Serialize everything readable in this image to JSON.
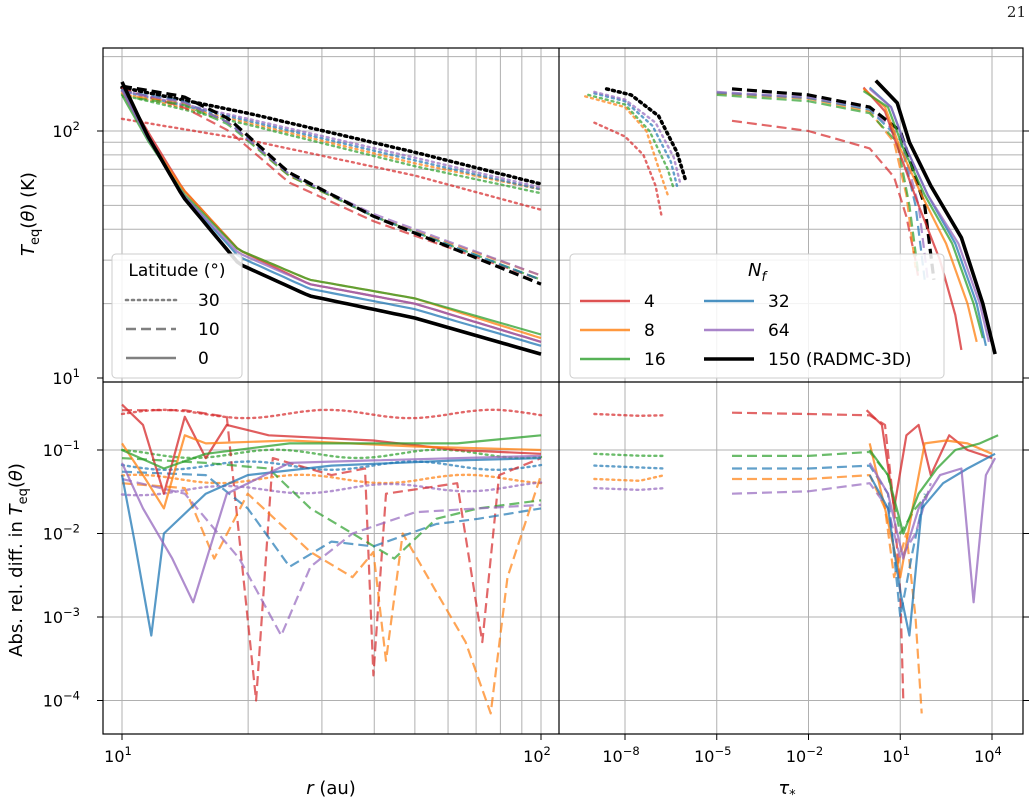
{
  "page_number": "21",
  "colors": {
    "Nf_4": "#d62728",
    "Nf_8": "#ff7f0e",
    "Nf_16": "#2ca02c",
    "Nf_32": "#1f77b4",
    "Nf_64": "#9467bd",
    "Nf_150": "#000000"
  },
  "legend_latitude": {
    "title": "Latitude (°)",
    "entries": [
      {
        "label": "30",
        "style": "dotted"
      },
      {
        "label": "10",
        "style": "dashed"
      },
      {
        "label": "0",
        "style": "solid"
      }
    ]
  },
  "legend_nf": {
    "title": "N_f",
    "entries": [
      {
        "label": "4",
        "key": "Nf_4"
      },
      {
        "label": "8",
        "key": "Nf_8"
      },
      {
        "label": "16",
        "key": "Nf_16"
      },
      {
        "label": "32",
        "key": "Nf_32"
      },
      {
        "label": "64",
        "key": "Nf_64"
      },
      {
        "label": "150 (RADMC-3D)",
        "key": "Nf_150"
      }
    ]
  },
  "chart_data": [
    {
      "type": "line",
      "panel": "top-left",
      "xscale": "log",
      "yscale": "log",
      "xlim": [
        10,
        100
      ],
      "ylim": [
        10,
        200
      ],
      "ylabel": "T_eq(θ) (K)",
      "yticks": [
        "10^2",
        "10^1"
      ],
      "series": [
        {
          "name": "150 (RADMC-3D)",
          "latitude": 30,
          "x": [
            10,
            20,
            50,
            100
          ],
          "y": [
            150,
            118,
            82,
            61
          ]
        },
        {
          "name": "4",
          "latitude": 30,
          "x": [
            10,
            20,
            50,
            100
          ],
          "y": [
            112,
            92,
            66,
            48
          ]
        },
        {
          "name": "16",
          "latitude": 30,
          "x": [
            10,
            20,
            50,
            100
          ],
          "y": [
            145,
            110,
            75,
            57
          ]
        },
        {
          "name": "150 (RADMC-3D)",
          "latitude": 10,
          "x": [
            10,
            15,
            20,
            30,
            50,
            100
          ],
          "y": [
            150,
            135,
            110,
            68,
            45,
            25
          ]
        },
        {
          "name": "4",
          "latitude": 10,
          "x": [
            10,
            15,
            20,
            30,
            50,
            100
          ],
          "y": [
            148,
            120,
            95,
            63,
            43,
            25
          ]
        },
        {
          "name": "150 (RADMC-3D)",
          "latitude": 0,
          "x": [
            10,
            12,
            15,
            20,
            30,
            50,
            100
          ],
          "y": [
            155,
            95,
            55,
            30,
            22,
            18,
            12.5
          ]
        },
        {
          "name": "16",
          "latitude": 0,
          "x": [
            10,
            12,
            15,
            20,
            30,
            50,
            100
          ],
          "y": [
            145,
            90,
            55,
            32,
            24,
            20,
            14.5
          ]
        }
      ]
    },
    {
      "type": "line",
      "panel": "top-right",
      "xscale": "log",
      "yscale": "log",
      "xlim": [
        1e-10,
        100000.0
      ],
      "ylim": [
        10,
        200
      ],
      "series": [
        {
          "name": "150 (RADMC-3D)",
          "latitude": 30,
          "x": [
            3e-09,
            1e-07,
            5e-07
          ],
          "y": [
            145,
            100,
            60
          ]
        },
        {
          "name": "4",
          "latitude": 30,
          "x": [
            1e-09,
            2e-08,
            1e-07
          ],
          "y": [
            108,
            80,
            45
          ]
        },
        {
          "name": "150 (RADMC-3D)",
          "latitude": 10,
          "x": [
            1e-05,
            0.01,
            1,
            30,
            100
          ],
          "y": [
            145,
            138,
            110,
            45,
            25
          ]
        },
        {
          "name": "4",
          "latitude": 10,
          "x": [
            1e-05,
            0.01,
            1,
            10,
            50
          ],
          "y": [
            112,
            100,
            75,
            40,
            25
          ]
        },
        {
          "name": "150 (RADMC-3D)",
          "latitude": 0,
          "x": [
            1,
            10,
            100,
            1000,
            10000
          ],
          "y": [
            155,
            100,
            55,
            35,
            12.5
          ]
        },
        {
          "name": "4",
          "latitude": 0,
          "x": [
            1,
            10,
            100,
            1000
          ],
          "y": [
            150,
            90,
            40,
            13
          ]
        }
      ]
    },
    {
      "type": "line",
      "panel": "bottom-left",
      "xscale": "log",
      "yscale": "log",
      "xlim": [
        10,
        100
      ],
      "ylim": [
        5e-05,
        0.6
      ],
      "xlabel": "r (au)",
      "ylabel": "Abs. rel. diff. in T_eq(θ)",
      "xticks": [
        "10^1",
        "10^2"
      ],
      "yticks": [
        "10^-1",
        "10^-2",
        "10^-3",
        "10^-4"
      ],
      "series": [
        {
          "name": "4",
          "latitude": 30,
          "x": [
            10,
            100
          ],
          "y": [
            0.27,
            0.26
          ]
        },
        {
          "name": "16",
          "latitude": 30,
          "x": [
            10,
            100
          ],
          "y": [
            0.09,
            0.09
          ]
        },
        {
          "name": "64",
          "latitude": 30,
          "x": [
            10,
            100
          ],
          "y": [
            0.03,
            0.034
          ]
        },
        {
          "name": "4",
          "latitude": 10,
          "x": [
            10,
            15,
            20,
            21,
            22,
            30,
            40,
            100
          ],
          "y": [
            0.28,
            0.28,
            0.25,
            0.0001,
            0.15,
            0.05,
            0.0002,
            0.08
          ]
        },
        {
          "name": "8",
          "latitude": 10,
          "x": [
            10,
            20,
            40,
            100
          ],
          "y": [
            0.05,
            0.03,
            0.0001,
            0.05
          ]
        },
        {
          "name": "4",
          "latitude": 0,
          "x": [
            10,
            20,
            100
          ],
          "y": [
            0.35,
            0.15,
            0.12
          ]
        },
        {
          "name": "8",
          "latitude": 0,
          "x": [
            10,
            20,
            100
          ],
          "y": [
            0.15,
            0.13,
            0.1
          ]
        }
      ]
    },
    {
      "type": "line",
      "panel": "bottom-right",
      "xscale": "log",
      "yscale": "log",
      "xlim": [
        1e-10,
        100000.0
      ],
      "ylim": [
        5e-05,
        0.6
      ],
      "xlabel": "τ_*",
      "xticks": [
        "10^-8",
        "10^-5",
        "10^-2",
        "10^1",
        "10^4"
      ],
      "series": [
        {
          "name": "4",
          "latitude": 30,
          "x": [
            1e-09,
            1e-07
          ],
          "y": [
            0.27,
            0.26
          ]
        },
        {
          "name": "4",
          "latitude": 10,
          "x": [
            1e-05,
            1,
            10
          ],
          "y": [
            0.28,
            0.26,
            0.0001
          ]
        },
        {
          "name": "16",
          "latitude": 10,
          "x": [
            1e-05,
            1
          ],
          "y": [
            0.09,
            0.09
          ]
        },
        {
          "name": "64",
          "latitude": 10,
          "x": [
            1e-05,
            1
          ],
          "y": [
            0.03,
            0.04
          ]
        }
      ]
    }
  ]
}
